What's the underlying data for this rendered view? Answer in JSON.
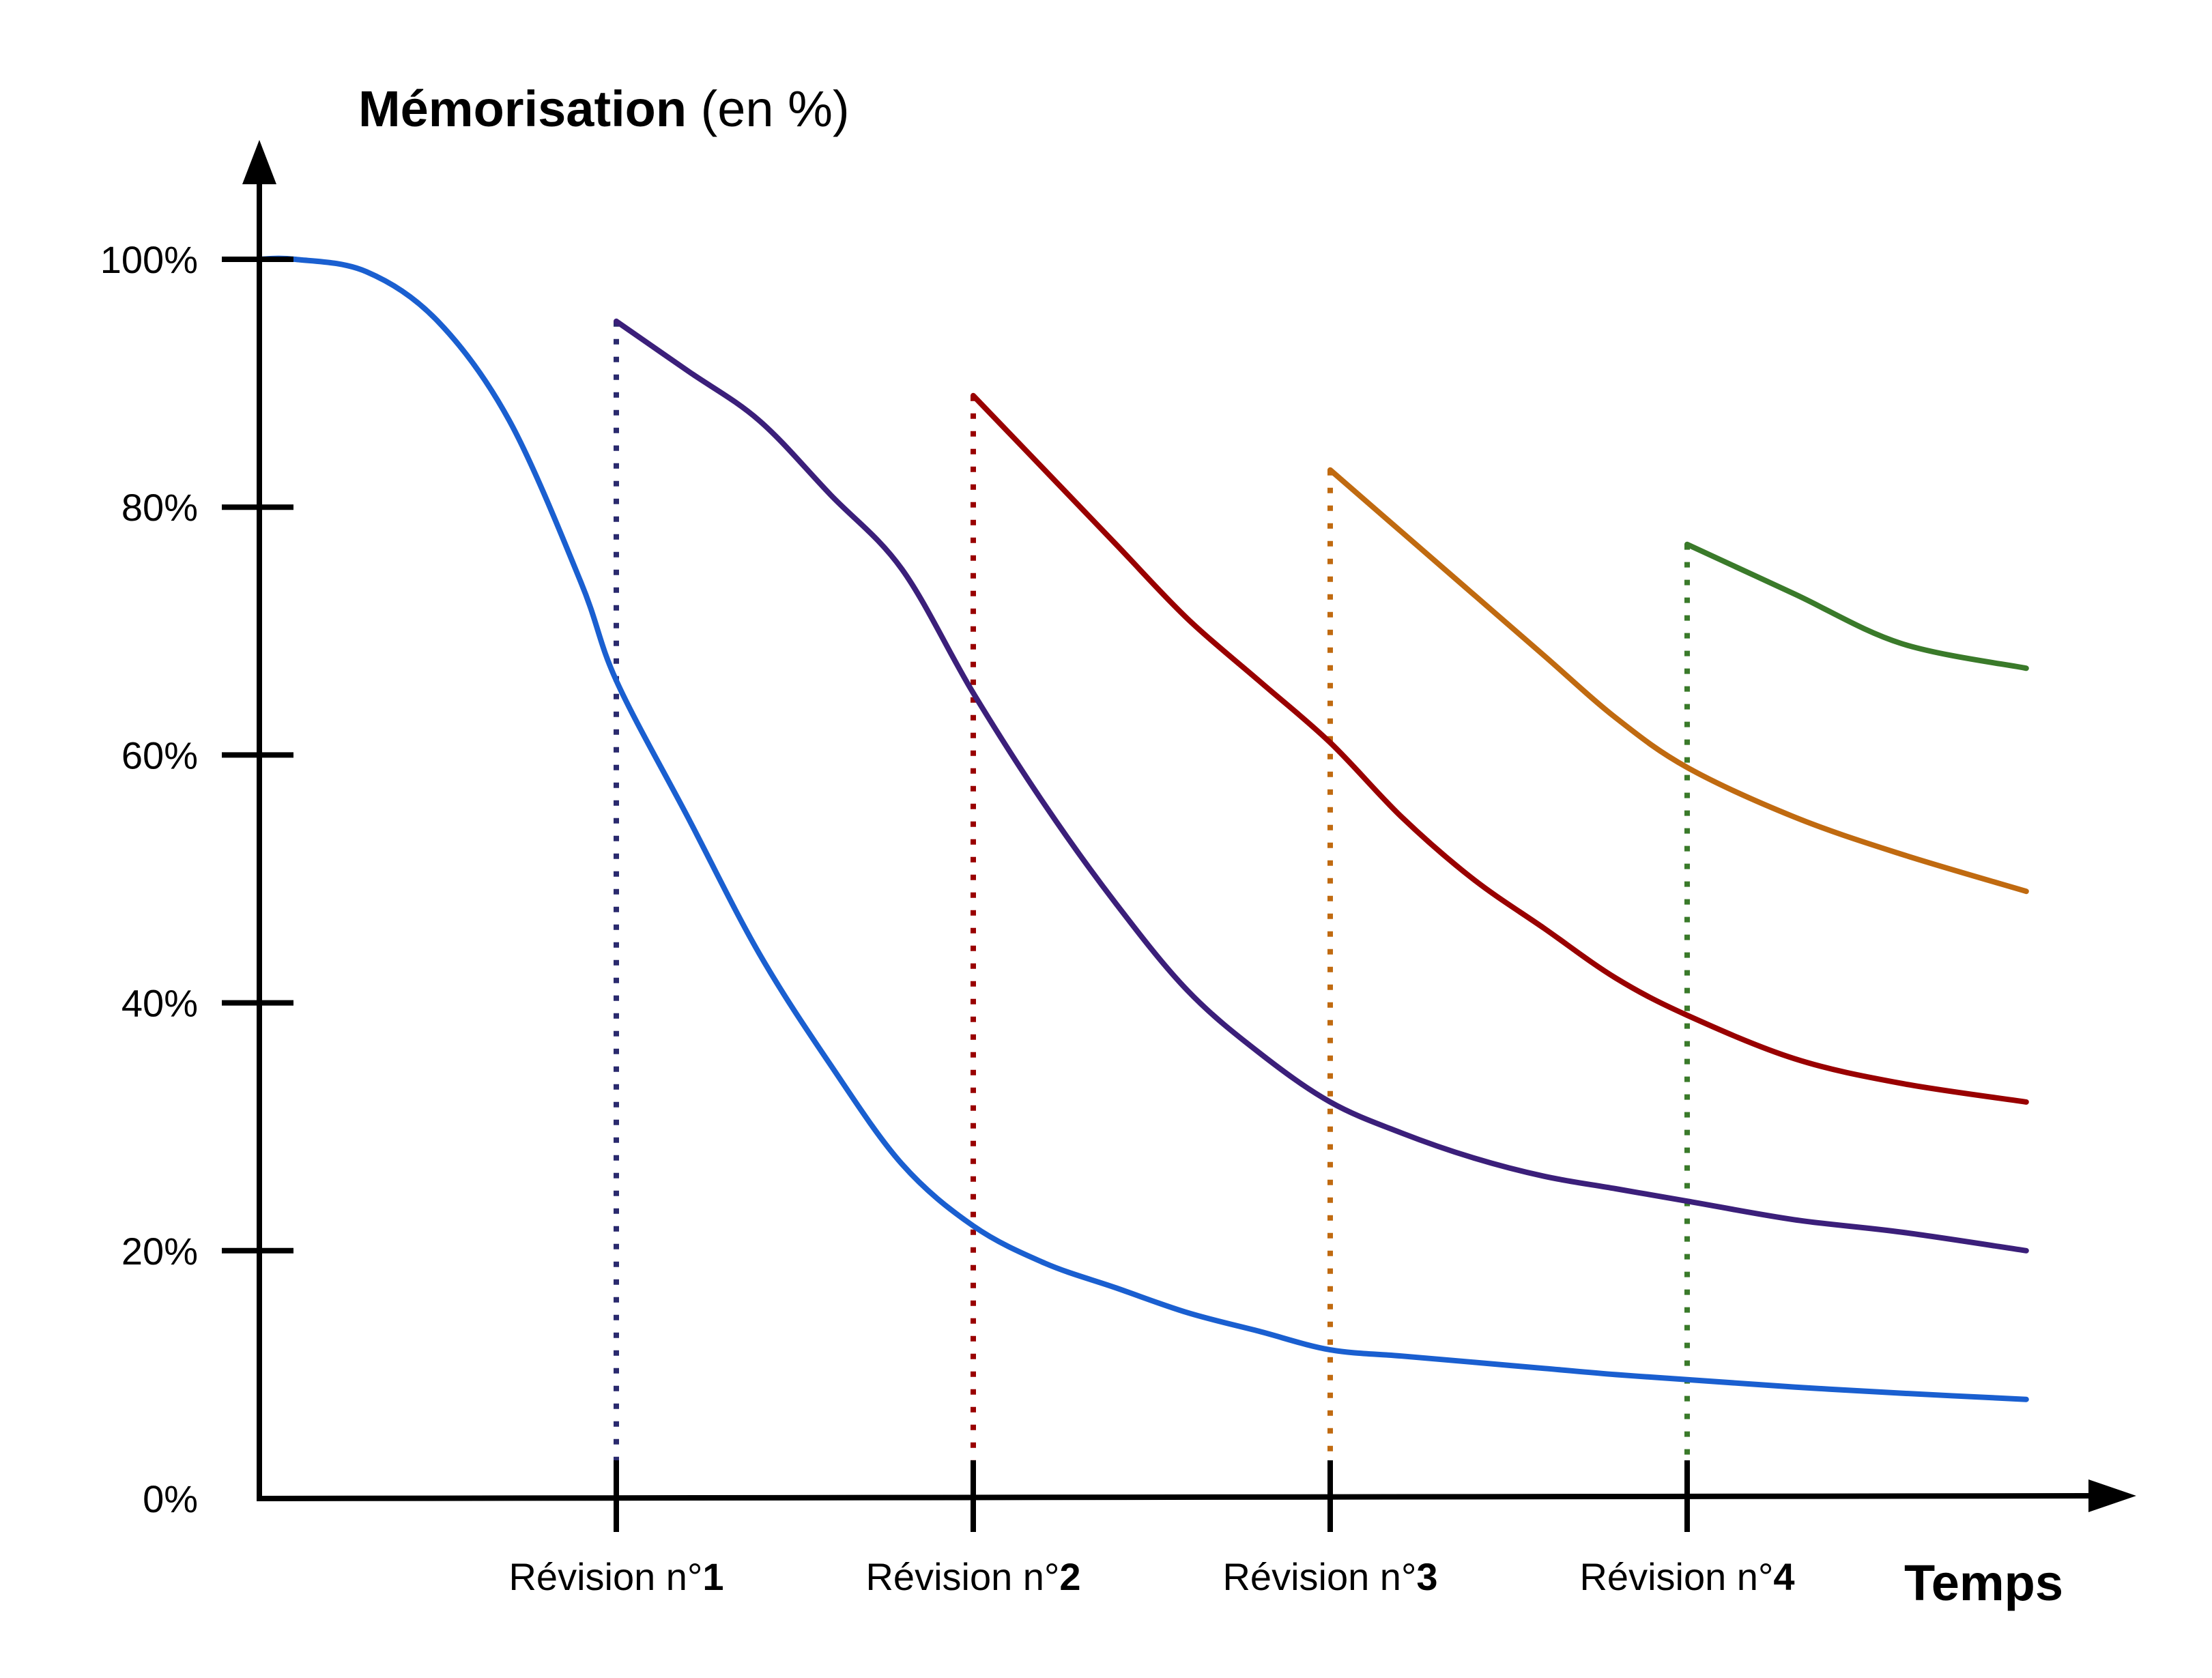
{
  "chart_data": {
    "type": "line",
    "title": {
      "bold": "Mémorisation",
      "rest": " (en %)"
    },
    "xlabel": "Temps",
    "ylabel": "Mémorisation (en %)",
    "ylim": [
      0,
      100
    ],
    "yticks": [
      {
        "value": 0,
        "label": "0%"
      },
      {
        "value": 20,
        "label": "20%"
      },
      {
        "value": 40,
        "label": "40%"
      },
      {
        "value": 60,
        "label": "60%"
      },
      {
        "value": 80,
        "label": "80%"
      },
      {
        "value": 100,
        "label": "100%"
      }
    ],
    "xlim": [
      0,
      5.3
    ],
    "revisions": [
      {
        "x": 1,
        "prefix": "Révision n°",
        "number": "1",
        "color": "#2a2a6e"
      },
      {
        "x": 2,
        "prefix": "Révision n°",
        "number": "2",
        "color": "#990000"
      },
      {
        "x": 3,
        "prefix": "Révision n°",
        "number": "3",
        "color": "#c06a10"
      },
      {
        "x": 4,
        "prefix": "Révision n°",
        "number": "4",
        "color": "#3a7a2a"
      }
    ],
    "grid": false,
    "legend": "none",
    "series": [
      {
        "color": "#1a5fd0",
        "points": [
          [
            0,
            100
          ],
          [
            0.1,
            100
          ],
          [
            0.3,
            99
          ],
          [
            0.5,
            95
          ],
          [
            0.7,
            87
          ],
          [
            0.9,
            74
          ],
          [
            1,
            66
          ],
          [
            1.2,
            55
          ],
          [
            1.4,
            44
          ],
          [
            1.6,
            35
          ],
          [
            1.8,
            27
          ],
          [
            2,
            22
          ],
          [
            2.2,
            19
          ],
          [
            2.4,
            17
          ],
          [
            2.6,
            15
          ],
          [
            2.8,
            13.5
          ],
          [
            3,
            12
          ],
          [
            3.2,
            11.5
          ],
          [
            3.4,
            11
          ],
          [
            3.6,
            10.5
          ],
          [
            3.8,
            10
          ],
          [
            4,
            9.6
          ],
          [
            4.3,
            9
          ],
          [
            4.6,
            8.5
          ],
          [
            4.95,
            8
          ]
        ]
      },
      {
        "color": "#3b1f7a",
        "points": [
          [
            1,
            95
          ],
          [
            1.2,
            91
          ],
          [
            1.4,
            87
          ],
          [
            1.6,
            81
          ],
          [
            1.8,
            75
          ],
          [
            2,
            65
          ],
          [
            2.2,
            56
          ],
          [
            2.4,
            48
          ],
          [
            2.6,
            41
          ],
          [
            2.8,
            36
          ],
          [
            3,
            32
          ],
          [
            3.2,
            29.5
          ],
          [
            3.4,
            27.5
          ],
          [
            3.6,
            26
          ],
          [
            3.8,
            25
          ],
          [
            4,
            24
          ],
          [
            4.3,
            22.5
          ],
          [
            4.6,
            21.5
          ],
          [
            4.95,
            20
          ]
        ]
      },
      {
        "color": "#990000",
        "points": [
          [
            2,
            89
          ],
          [
            2.2,
            83
          ],
          [
            2.4,
            77
          ],
          [
            2.6,
            71
          ],
          [
            2.8,
            66
          ],
          [
            3,
            61
          ],
          [
            3.2,
            55
          ],
          [
            3.4,
            50
          ],
          [
            3.6,
            46
          ],
          [
            3.8,
            42
          ],
          [
            4,
            39
          ],
          [
            4.3,
            35.5
          ],
          [
            4.6,
            33.5
          ],
          [
            4.95,
            32
          ]
        ]
      },
      {
        "color": "#c06a10",
        "points": [
          [
            3,
            83
          ],
          [
            3.2,
            78
          ],
          [
            3.4,
            73
          ],
          [
            3.6,
            68
          ],
          [
            3.8,
            63
          ],
          [
            4,
            59
          ],
          [
            4.3,
            55
          ],
          [
            4.6,
            52
          ],
          [
            4.95,
            49
          ]
        ]
      },
      {
        "color": "#3a7a2a",
        "points": [
          [
            4,
            77
          ],
          [
            4.3,
            73
          ],
          [
            4.6,
            69
          ],
          [
            4.95,
            67
          ]
        ]
      }
    ]
  }
}
